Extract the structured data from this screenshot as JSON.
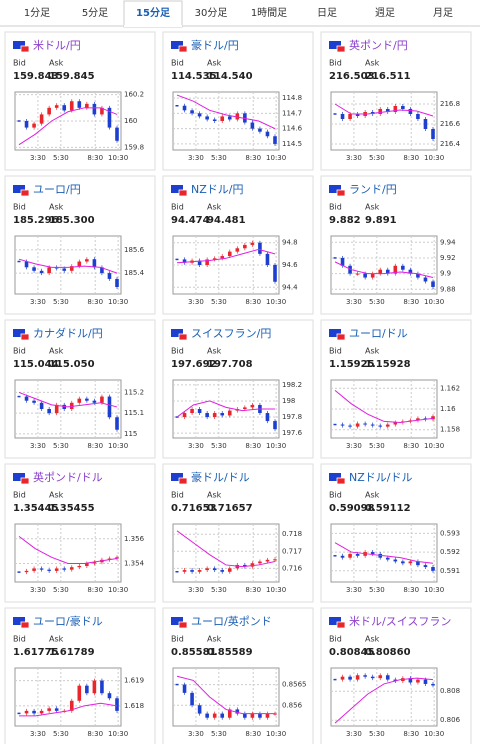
{
  "tabs": {
    "items": [
      "1分足",
      "5分足",
      "15分足",
      "30分足",
      "1時間足",
      "日足",
      "週足",
      "月足"
    ],
    "active": 2
  },
  "labels": {
    "bid": "Bid",
    "ask": "Ask"
  },
  "x_axis": {
    "xlim": [
      1.5,
      10.75
    ],
    "xticks": [
      {
        "value": 3.5,
        "label": "3:30"
      },
      {
        "value": 5.5,
        "label": "5:30"
      },
      {
        "value": 8.5,
        "label": "8:30"
      },
      {
        "value": 10.5,
        "label": "10:30"
      }
    ]
  },
  "colors": {
    "up": "#e8262c",
    "down": "#1c3fd0",
    "ma": "#e020e0"
  },
  "cards": [
    {
      "title": "米ドル/円",
      "title_color": "#8a3fc8",
      "bid": "159.843",
      "ask": "159.845",
      "ylim": [
        159.78,
        160.22
      ],
      "yticks": [
        159.8,
        160,
        160.2
      ],
      "closes": [
        160.0,
        159.95,
        159.98,
        160.05,
        160.1,
        160.12,
        160.08,
        160.15,
        160.1,
        160.13,
        160.05,
        160.1,
        159.95,
        159.85
      ],
      "ma": [
        159.82,
        159.9,
        160.0,
        160.07,
        160.1,
        160.1,
        160.05
      ]
    },
    {
      "title": "豪ドル/円",
      "title_color": "#1a5fb4",
      "bid": "114.535",
      "ask": "114.540",
      "ylim": [
        114.46,
        114.84
      ],
      "yticks": [
        114.5,
        114.6,
        114.7,
        114.8
      ],
      "closes": [
        114.75,
        114.72,
        114.7,
        114.68,
        114.66,
        114.65,
        114.68,
        114.66,
        114.7,
        114.64,
        114.6,
        114.58,
        114.55,
        114.5
      ],
      "ma": [
        114.82,
        114.78,
        114.72,
        114.69,
        114.67,
        114.65,
        114.6
      ]
    },
    {
      "title": "英ポンド/円",
      "title_color": "#8a3fc8",
      "bid": "216.503",
      "ask": "216.511",
      "ylim": [
        216.34,
        216.92
      ],
      "yticks": [
        216.4,
        216.6,
        216.8
      ],
      "closes": [
        216.7,
        216.65,
        216.7,
        216.68,
        216.72,
        216.7,
        216.75,
        216.72,
        216.78,
        216.75,
        216.7,
        216.65,
        216.55,
        216.45
      ],
      "ma": [
        216.8,
        216.7,
        216.7,
        216.72,
        216.74,
        216.73,
        216.68
      ]
    },
    {
      "title": "ユーロ/円",
      "title_color": "#1a5fb4",
      "bid": "185.296",
      "ask": "185.300",
      "ylim": [
        185.22,
        185.72
      ],
      "yticks": [
        185.4,
        185.6
      ],
      "closes": [
        185.5,
        185.45,
        185.42,
        185.4,
        185.45,
        185.44,
        185.42,
        185.46,
        185.5,
        185.52,
        185.45,
        185.4,
        185.35,
        185.28
      ],
      "ma": [
        185.52,
        185.48,
        185.45,
        185.45,
        185.46,
        185.45,
        185.4
      ]
    },
    {
      "title": "NZドル/円",
      "title_color": "#1a5fb4",
      "bid": "94.474",
      "ask": "94.481",
      "ylim": [
        94.34,
        94.86
      ],
      "yticks": [
        94.4,
        94.6,
        94.8
      ],
      "closes": [
        94.65,
        94.62,
        94.64,
        94.6,
        94.65,
        94.66,
        94.68,
        94.72,
        94.75,
        94.78,
        94.8,
        94.7,
        94.6,
        94.45
      ],
      "ma": [
        94.62,
        94.63,
        94.64,
        94.66,
        94.7,
        94.74,
        94.7
      ]
    },
    {
      "title": "ランド/円",
      "title_color": "#1a5fb4",
      "bid": "9.882",
      "ask": "9.891",
      "ylim": [
        9.874,
        9.948
      ],
      "yticks": [
        9.88,
        9.9,
        9.92,
        9.94
      ],
      "closes": [
        9.92,
        9.91,
        9.9,
        9.9,
        9.895,
        9.9,
        9.905,
        9.9,
        9.91,
        9.905,
        9.9,
        9.895,
        9.89,
        9.883
      ],
      "ma": [
        9.915,
        9.905,
        9.9,
        9.9,
        9.902,
        9.9,
        9.895
      ]
    },
    {
      "title": "カナダドル/円",
      "title_color": "#1a5fb4",
      "bid": "115.044",
      "ask": "115.050",
      "ylim": [
        114.98,
        115.26
      ],
      "yticks": [
        115,
        115.1,
        115.2
      ],
      "closes": [
        115.18,
        115.16,
        115.15,
        115.12,
        115.1,
        115.14,
        115.12,
        115.15,
        115.17,
        115.16,
        115.15,
        115.18,
        115.08,
        115.02
      ],
      "ma": [
        115.2,
        115.17,
        115.14,
        115.13,
        115.14,
        115.15,
        115.13
      ]
    },
    {
      "title": "スイスフラン/円",
      "title_color": "#1a5fb4",
      "bid": "197.692",
      "ask": "197.708",
      "ylim": [
        197.54,
        198.26
      ],
      "yticks": [
        197.6,
        197.8,
        198,
        198.2
      ],
      "closes": [
        197.8,
        197.85,
        197.9,
        197.85,
        197.8,
        197.85,
        197.82,
        197.88,
        197.9,
        197.92,
        197.95,
        197.85,
        197.75,
        197.65
      ],
      "ma": [
        197.8,
        197.95,
        198.0,
        197.92,
        197.88,
        197.9,
        197.9
      ]
    },
    {
      "title": "ユーロ/ドル",
      "title_color": "#1a5fb4",
      "bid": "1.15925",
      "ask": "1.15928",
      "ylim": [
        1.1572,
        1.1628
      ],
      "yticks": [
        1.158,
        1.16,
        1.162
      ],
      "closes": [
        1.1585,
        1.1584,
        1.1583,
        1.1586,
        1.1585,
        1.1584,
        1.1583,
        1.1585,
        1.1587,
        1.1588,
        1.1589,
        1.1591,
        1.159,
        1.1593
      ],
      "ma": [
        1.1618,
        1.1605,
        1.1595,
        1.1588,
        1.1587,
        1.1589,
        1.1591
      ]
    },
    {
      "title": "英ポンド/ドル",
      "title_color": "#8a3fc8",
      "bid": "1.35445",
      "ask": "1.35455",
      "ylim": [
        1.3525,
        1.3572
      ],
      "yticks": [
        1.354,
        1.356
      ],
      "closes": [
        1.3533,
        1.3534,
        1.3536,
        1.3535,
        1.3534,
        1.3536,
        1.3535,
        1.3537,
        1.3538,
        1.354,
        1.3541,
        1.3543,
        1.3544,
        1.3545
      ],
      "ma": [
        1.3562,
        1.3552,
        1.3545,
        1.354,
        1.354,
        1.3542,
        1.3544
      ]
    },
    {
      "title": "豪ドル/ドル",
      "title_color": "#1a5fb4",
      "bid": "0.71653",
      "ask": "0.71657",
      "ylim": [
        0.7152,
        0.7186
      ],
      "yticks": [
        0.716,
        0.717,
        0.718
      ],
      "closes": [
        0.7158,
        0.7159,
        0.7158,
        0.7159,
        0.716,
        0.7159,
        0.7158,
        0.716,
        0.7162,
        0.7161,
        0.7163,
        0.7164,
        0.7165,
        0.71653
      ],
      "ma": [
        0.7182,
        0.7175,
        0.7168,
        0.7162,
        0.7161,
        0.7162,
        0.7164
      ]
    },
    {
      "title": "NZドル/ドル",
      "title_color": "#1a5fb4",
      "bid": "0.59098",
      "ask": "0.59112",
      "ylim": [
        0.5904,
        0.5935
      ],
      "yticks": [
        0.591,
        0.592,
        0.593
      ],
      "closes": [
        0.5918,
        0.5917,
        0.5919,
        0.5918,
        0.592,
        0.5919,
        0.5917,
        0.5916,
        0.5915,
        0.5914,
        0.5915,
        0.5913,
        0.5912,
        0.591
      ],
      "ma": [
        0.5925,
        0.592,
        0.5919,
        0.5918,
        0.5917,
        0.5915,
        0.5914
      ]
    },
    {
      "title": "ユーロ/豪ドル",
      "title_color": "#1a5fb4",
      "bid": "1.61775",
      "ask": "1.61789",
      "ylim": [
        1.6172,
        1.6195
      ],
      "yticks": [
        1.618,
        1.619
      ],
      "closes": [
        1.6177,
        1.6178,
        1.6177,
        1.6178,
        1.6179,
        1.6178,
        1.6178,
        1.6182,
        1.6188,
        1.6185,
        1.619,
        1.6185,
        1.6183,
        1.6178
      ],
      "ma": [
        1.6176,
        1.6176,
        1.6177,
        1.6178,
        1.618,
        1.6181,
        1.618
      ]
    },
    {
      "title": "ユーロ/英ポンド",
      "title_color": "#1a5fb4",
      "bid": "0.85581",
      "ask": "0.85589",
      "ylim": [
        0.8555,
        0.8569
      ],
      "yticks": [
        0.856,
        0.8565
      ],
      "closes": [
        0.8565,
        0.8563,
        0.856,
        0.8558,
        0.8557,
        0.8558,
        0.8557,
        0.8559,
        0.8558,
        0.8557,
        0.8558,
        0.8557,
        0.8558,
        0.8558
      ],
      "ma": [
        0.8567,
        0.8566,
        0.8562,
        0.8559,
        0.8558,
        0.8558,
        0.8558
      ]
    },
    {
      "title": "米ドル/スイスフラン",
      "title_color": "#8a3fc8",
      "bid": "0.80845",
      "ask": "0.80860",
      "ylim": [
        0.8056,
        0.8096
      ],
      "yticks": [
        0.806,
        0.808
      ],
      "closes": [
        0.8088,
        0.809,
        0.8088,
        0.8091,
        0.809,
        0.8089,
        0.8091,
        0.8088,
        0.8087,
        0.8089,
        0.8086,
        0.8088,
        0.8085,
        0.8084
      ],
      "ma": [
        0.8058,
        0.8068,
        0.8078,
        0.8085,
        0.8088,
        0.8089,
        0.8088
      ]
    }
  ]
}
